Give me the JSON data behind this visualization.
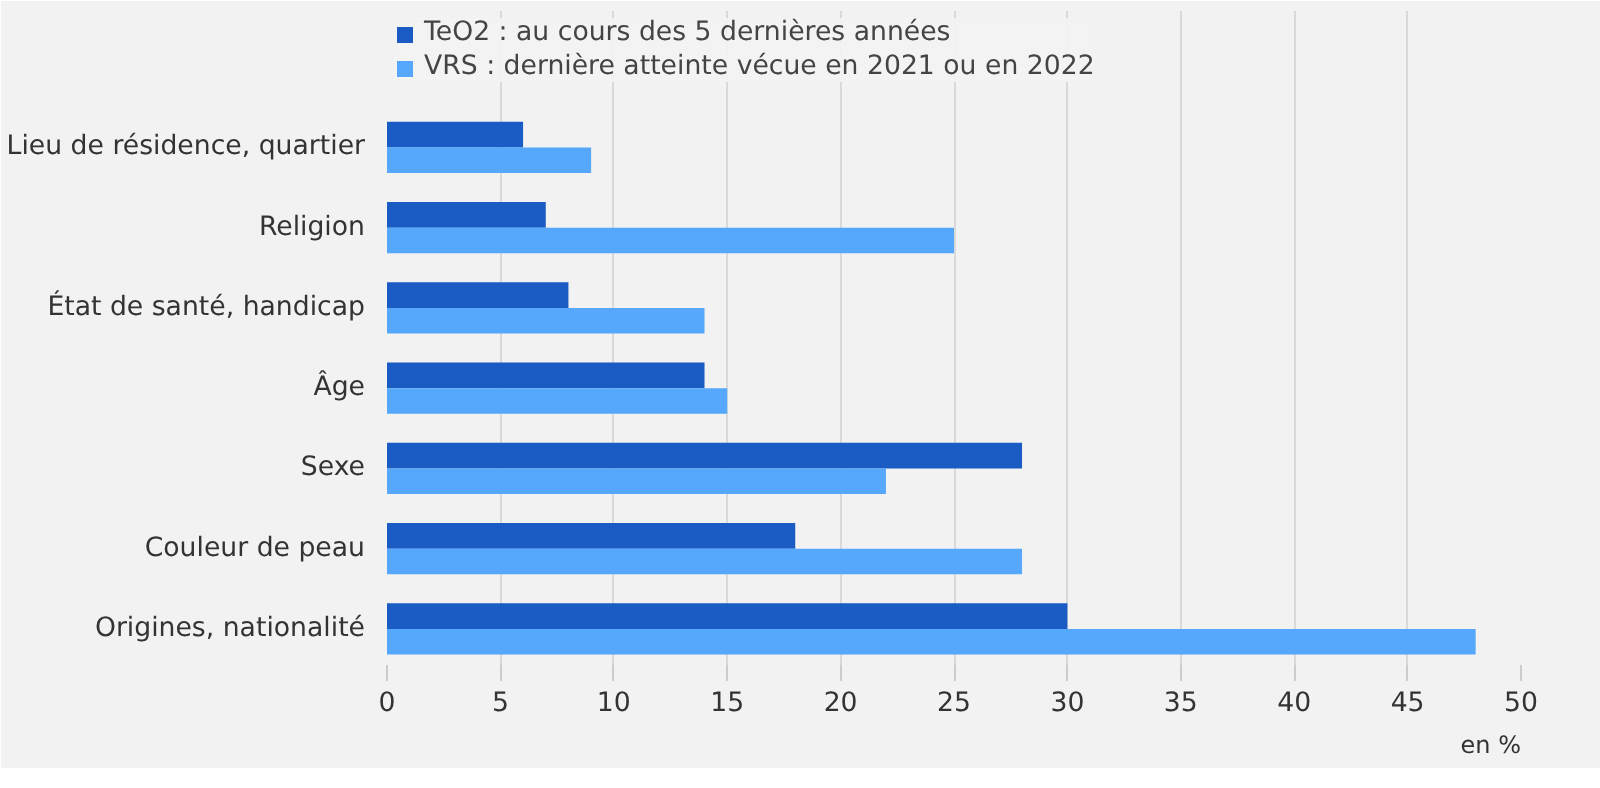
{
  "chart_data": {
    "type": "bar",
    "orientation": "horizontal",
    "xlabel": "en %",
    "categories": [
      "Lieu de résidence, quartier",
      "Religion",
      "État de santé, handicap",
      "Âge",
      "Sexe",
      "Couleur de peau",
      "Origines, nationalité"
    ],
    "series": [
      {
        "name": "TeO2 : au cours des 5 dernières années",
        "color": "#1a5bc4",
        "values": [
          6,
          7,
          8,
          14,
          28,
          18,
          30
        ]
      },
      {
        "name": "VRS : dernière atteinte vécue en 2021 ou en 2022",
        "color": "#55a8fb",
        "values": [
          9,
          25,
          14,
          15,
          22,
          28,
          48
        ]
      }
    ],
    "xlim": [
      0,
      50
    ],
    "xticks": [
      0,
      5,
      10,
      15,
      20,
      25,
      30,
      35,
      40,
      45,
      50
    ],
    "grid": "x",
    "legend": "top left"
  }
}
